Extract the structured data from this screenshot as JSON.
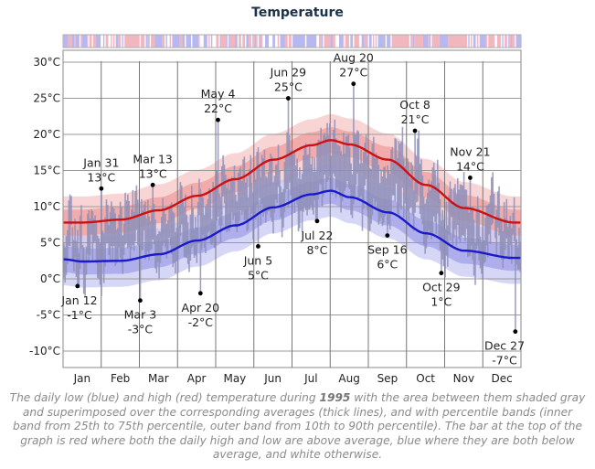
{
  "chart_data": {
    "type": "line",
    "title": "Temperature",
    "year": "1995",
    "unit": "°C",
    "ylim": [
      -12,
      33
    ],
    "y_ticks": [
      "30°C",
      "25°C",
      "20°C",
      "15°C",
      "10°C",
      "5°C",
      "0°C",
      "-5°C",
      "-10°C"
    ],
    "y_tick_values": [
      30,
      25,
      20,
      15,
      10,
      5,
      0,
      -5,
      -10
    ],
    "x_ticks": [
      "Jan",
      "Feb",
      "Mar",
      "Apr",
      "May",
      "Jun",
      "Jul",
      "Aug",
      "Sep",
      "Oct",
      "Nov",
      "Dec"
    ],
    "grid": true,
    "series": [
      {
        "name": "average high",
        "color": "#cc1111",
        "values": [
          7.8,
          7.8,
          8.2,
          9.5,
          11.5,
          13.8,
          16.5,
          18.5,
          19.2,
          18.6,
          16.5,
          13.0,
          9.8,
          7.8
        ]
      },
      {
        "name": "average low",
        "color": "#1a1acc",
        "values": [
          2.7,
          2.4,
          2.5,
          3.4,
          5.3,
          7.4,
          9.9,
          11.7,
          12.2,
          11.3,
          9.2,
          6.3,
          3.9,
          2.9
        ]
      }
    ],
    "series_x_months": [
      0,
      0.5,
      1.5,
      2.5,
      3.5,
      4.5,
      5.5,
      6.5,
      7.0,
      7.5,
      8.5,
      9.5,
      10.5,
      11.8
    ],
    "annotations": [
      {
        "date": "Jan 12",
        "value": "-1°C",
        "temp": -1,
        "day": 11
      },
      {
        "date": "Jan 31",
        "value": "13°C",
        "temp": 12.5,
        "day": 30
      },
      {
        "date": "Mar 3",
        "value": "-3°C",
        "temp": -3,
        "day": 61
      },
      {
        "date": "Mar 13",
        "value": "13°C",
        "temp": 13,
        "day": 71
      },
      {
        "date": "Apr 20",
        "value": "-2°C",
        "temp": -2,
        "day": 109
      },
      {
        "date": "May 4",
        "value": "22°C",
        "temp": 22,
        "day": 123
      },
      {
        "date": "Jun 5",
        "value": "5°C",
        "temp": 4.5,
        "day": 155
      },
      {
        "date": "Jun 29",
        "value": "25°C",
        "temp": 25,
        "day": 179
      },
      {
        "date": "Jul 22",
        "value": "8°C",
        "temp": 8,
        "day": 202
      },
      {
        "date": "Aug 20",
        "value": "27°C",
        "temp": 27,
        "day": 231
      },
      {
        "date": "Sep 16",
        "value": "6°C",
        "temp": 6,
        "day": 258
      },
      {
        "date": "Oct 8",
        "value": "21°C",
        "temp": 20.5,
        "day": 280
      },
      {
        "date": "Oct 29",
        "value": "1°C",
        "temp": 0.8,
        "day": 301
      },
      {
        "date": "Nov 21",
        "value": "14°C",
        "temp": 14,
        "day": 324
      },
      {
        "date": "Dec 27",
        "value": "-7°C",
        "temp": -7.3,
        "day": 360
      }
    ]
  },
  "caption": {
    "before": "The daily low (blue) and high (red) temperature during ",
    "year": "1995",
    "after": " with the area between them shaded gray and superimposed over the corresponding averages (thick lines), and with percentile bands (inner band from 25th to 75th percentile, outer band from 10th to 90th percentile). The bar at the top of the graph is red where both the daily high and low are above average, blue where they are both below average, and white otherwise."
  },
  "colors": {
    "high": "#cc1111",
    "low": "#1a1acc",
    "daily_bar": "#8f8fb8",
    "anomaly_red": "#f2b6be",
    "anomaly_blue": "#b8b8f0",
    "grid": "#999999"
  }
}
